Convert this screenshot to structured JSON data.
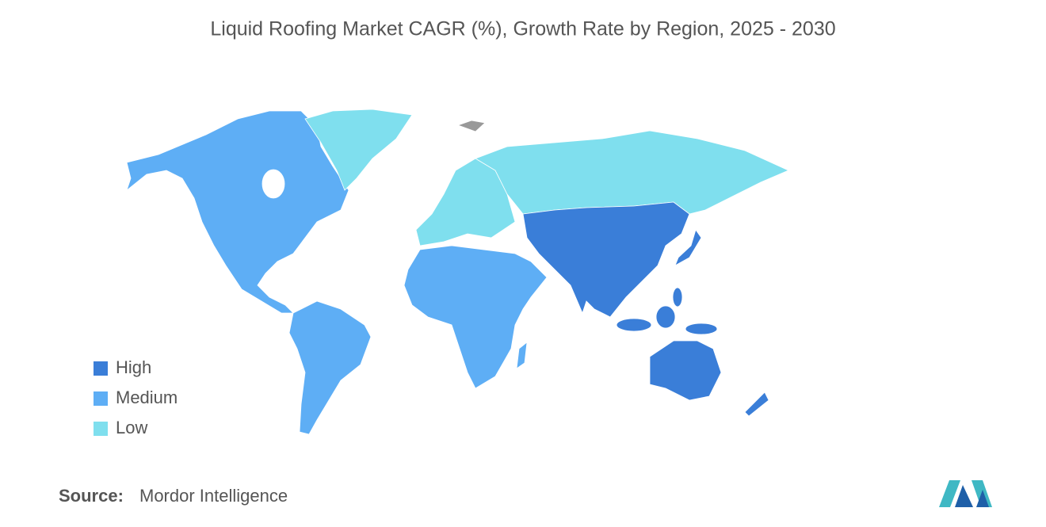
{
  "title": "Liquid Roofing Market CAGR (%), Growth Rate by Region, 2025 - 2030",
  "legend": [
    {
      "label": "High",
      "color": "#3a7ed8"
    },
    {
      "label": "Medium",
      "color": "#5eaef5"
    },
    {
      "label": "Low",
      "color": "#7fdfee"
    }
  ],
  "source": {
    "label": "Source:",
    "text": "Mordor Intelligence"
  }
}
